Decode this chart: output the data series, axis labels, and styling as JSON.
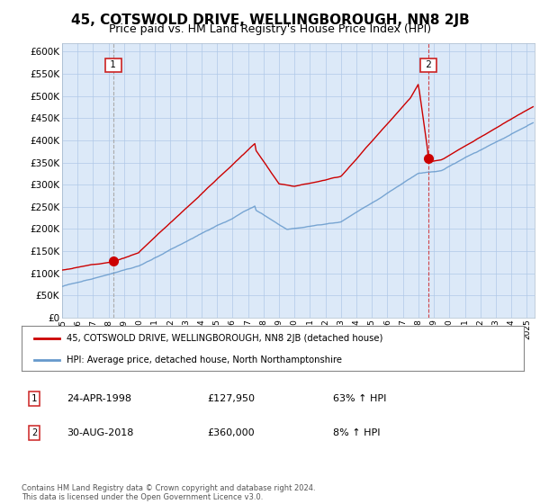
{
  "title": "45, COTSWOLD DRIVE, WELLINGBOROUGH, NN8 2JB",
  "subtitle": "Price paid vs. HM Land Registry's House Price Index (HPI)",
  "legend_line1": "45, COTSWOLD DRIVE, WELLINGBOROUGH, NN8 2JB (detached house)",
  "legend_line2": "HPI: Average price, detached house, North Northamptonshire",
  "annotation1_num": "1",
  "annotation1_date": "24-APR-1998",
  "annotation1_price": "£127,950",
  "annotation1_hpi": "63% ↑ HPI",
  "annotation2_num": "2",
  "annotation2_date": "30-AUG-2018",
  "annotation2_price": "£360,000",
  "annotation2_hpi": "8% ↑ HPI",
  "footnote": "Contains HM Land Registry data © Crown copyright and database right 2024.\nThis data is licensed under the Open Government Licence v3.0.",
  "ylim": [
    0,
    620000
  ],
  "yticks": [
    0,
    50000,
    100000,
    150000,
    200000,
    250000,
    300000,
    350000,
    400000,
    450000,
    500000,
    550000,
    600000
  ],
  "xlim_start": 1995.0,
  "xlim_end": 2025.5,
  "plot_bg": "#dce9f8",
  "red_color": "#cc0000",
  "blue_color": "#6699cc",
  "marker1_year": 1998.31,
  "marker1_price": 127950,
  "marker2_year": 2018.66,
  "marker2_price": 360000,
  "title_fontsize": 11,
  "subtitle_fontsize": 9
}
